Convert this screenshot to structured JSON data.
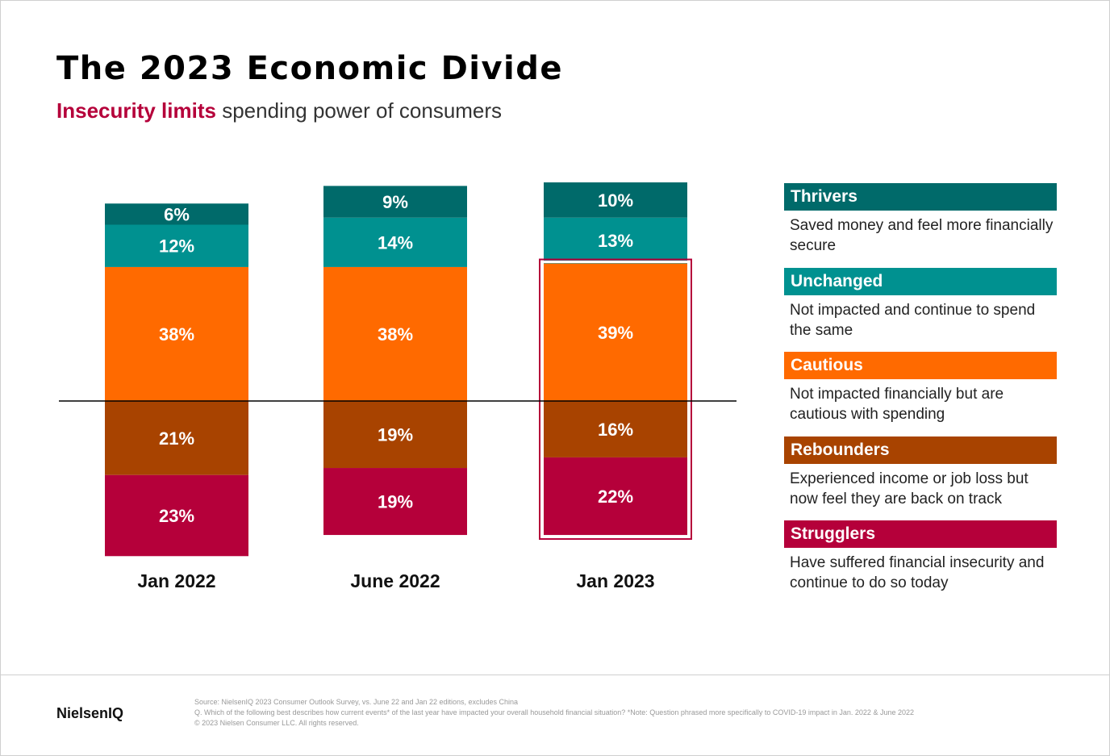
{
  "title": "The 2023 Economic Divide",
  "subtitle": {
    "highlight": "Insecurity limits",
    "rest": " spending power of consumers"
  },
  "colors": {
    "Thrivers": "#006A6A",
    "Unchanged": "#009190",
    "Cautious": "#FF6A00",
    "Rebounders": "#A84300",
    "Strugglers": "#B5003A",
    "highlight_box": "#B5003A"
  },
  "chart_data": {
    "type": "bar",
    "stacked": true,
    "categories": [
      "Jan 2022",
      "June 2022",
      "Jan 2023"
    ],
    "baseline_divides": "Cautious / Rebounders",
    "series": [
      {
        "name": "Strugglers",
        "values": [
          23,
          19,
          22
        ]
      },
      {
        "name": "Rebounders",
        "values": [
          21,
          19,
          16
        ]
      },
      {
        "name": "Cautious",
        "values": [
          38,
          38,
          39
        ]
      },
      {
        "name": "Unchanged",
        "values": [
          12,
          14,
          13
        ]
      },
      {
        "name": "Thrivers",
        "values": [
          6,
          9,
          10
        ]
      }
    ],
    "highlighted_segments": {
      "category": "Jan 2023",
      "series": [
        "Cautious",
        "Rebounders",
        "Strugglers"
      ]
    }
  },
  "legend": [
    {
      "name": "Thrivers",
      "desc": "Saved money and feel more financially secure"
    },
    {
      "name": "Unchanged",
      "desc": "Not impacted and continue to spend the same"
    },
    {
      "name": "Cautious",
      "desc": "Not impacted financially but are cautious with spending"
    },
    {
      "name": "Rebounders",
      "desc": "Experienced income or job loss but now feel they are back on track"
    },
    {
      "name": "Strugglers",
      "desc": "Have suffered financial insecurity and continue to do so today"
    }
  ],
  "footer": {
    "logo": "NielsenIQ",
    "source": "Source: NielsenIQ 2023 Consumer Outlook Survey, vs. June 22 and Jan 22 editions, excludes China",
    "question": "Q. Which of the following best describes how current events* of the last year have impacted your overall household financial situation? *Note: Question phrased more specifically to COVID-19 impact in Jan. 2022 & June 2022",
    "copyright": "© 2023 Nielsen Consumer LLC. All rights reserved."
  }
}
